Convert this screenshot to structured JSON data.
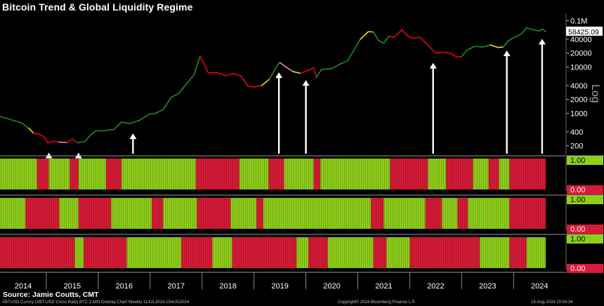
{
  "title": "Bitcoin Trend & Global Liquidity Regime",
  "source": "Source: Jamie Coutts, CMT",
  "footer": {
    "left": "XBTUSD Curncy (XBT-USD Cross Rate) BTC 3 MSI Overlay Chart  Weekly 11JUL2014-15AUG2024",
    "center": "Copyright© 2024 Bloomberg Finance L.P.",
    "right": "15-Aug-2024 20:54:34"
  },
  "colors": {
    "uptrend": "#1f8c1f",
    "downtrend": "#e8001c",
    "neutral_yellow": "#e8e21a",
    "neutral_pink": "#e889c0",
    "regime_on": "#8fcf1a",
    "regime_off": "#d81b37",
    "background": "#000000",
    "last_price_box": "#ffffff"
  },
  "chart_data": [
    {
      "type": "line",
      "yscale": "log",
      "ylabel": "Log",
      "ylim": [
        100,
        100000
      ],
      "y_ticks": [
        "200",
        "400",
        "1000",
        "2000",
        "4000",
        "10000",
        "20000",
        "40000",
        "0.1M"
      ],
      "y_tick_values": [
        200,
        400,
        1000,
        2000,
        4000,
        10000,
        20000,
        40000,
        100000
      ],
      "last_value_label": "58425.09",
      "x_categories": [
        "2014",
        "2015",
        "2016",
        "2017",
        "2018",
        "2019",
        "2020",
        "2021",
        "2022",
        "2023",
        "2024"
      ],
      "series": [
        {
          "points": [
            [
              2014.53,
              620
            ],
            [
              2014.66,
              480
            ],
            [
              2014.76,
              370
            ],
            [
              2014.85,
              360
            ],
            [
              2014.95,
              320
            ],
            [
              2015.03,
              230
            ],
            [
              2015.12,
              250
            ],
            [
              2015.25,
              240
            ],
            [
              2015.4,
              235
            ],
            [
              2015.5,
              280
            ],
            [
              2015.6,
              230
            ],
            [
              2015.75,
              250
            ],
            [
              2015.85,
              340
            ],
            [
              2015.95,
              420
            ],
            [
              2016.1,
              420
            ],
            [
              2016.3,
              450
            ],
            [
              2016.45,
              650
            ],
            [
              2016.6,
              600
            ],
            [
              2016.8,
              710
            ],
            [
              2016.98,
              960
            ],
            [
              2017.1,
              1000
            ],
            [
              2017.25,
              1200
            ],
            [
              2017.4,
              2200
            ],
            [
              2017.55,
              2700
            ],
            [
              2017.7,
              4300
            ],
            [
              2017.85,
              7000
            ],
            [
              2017.96,
              17000
            ],
            [
              2018.05,
              11000
            ],
            [
              2018.12,
              7500
            ],
            [
              2018.3,
              7500
            ],
            [
              2018.45,
              6500
            ],
            [
              2018.6,
              7200
            ],
            [
              2018.75,
              6400
            ],
            [
              2018.88,
              3900
            ],
            [
              2019.0,
              3700
            ],
            [
              2019.15,
              4000
            ],
            [
              2019.3,
              5500
            ],
            [
              2019.45,
              11000
            ],
            [
              2019.5,
              12500
            ],
            [
              2019.6,
              10300
            ],
            [
              2019.75,
              8000
            ],
            [
              2019.9,
              7300
            ],
            [
              2020.05,
              8500
            ],
            [
              2020.15,
              9600
            ],
            [
              2020.2,
              6000
            ],
            [
              2020.3,
              8800
            ],
            [
              2020.5,
              9300
            ],
            [
              2020.65,
              11500
            ],
            [
              2020.8,
              13500
            ],
            [
              2020.95,
              26000
            ],
            [
              2021.05,
              40000
            ],
            [
              2021.2,
              58000
            ],
            [
              2021.3,
              57000
            ],
            [
              2021.4,
              37000
            ],
            [
              2021.5,
              33000
            ],
            [
              2021.6,
              46000
            ],
            [
              2021.7,
              44000
            ],
            [
              2021.85,
              64000
            ],
            [
              2021.95,
              48000
            ],
            [
              2022.05,
              42000
            ],
            [
              2022.2,
              44000
            ],
            [
              2022.35,
              30000
            ],
            [
              2022.5,
              20000
            ],
            [
              2022.65,
              21000
            ],
            [
              2022.8,
              19500
            ],
            [
              2022.9,
              16500
            ],
            [
              2023.0,
              16800
            ],
            [
              2023.1,
              23000
            ],
            [
              2023.25,
              28000
            ],
            [
              2023.4,
              27000
            ],
            [
              2023.55,
              30000
            ],
            [
              2023.7,
              26500
            ],
            [
              2023.8,
              27000
            ],
            [
              2023.9,
              37000
            ],
            [
              2024.0,
              43000
            ],
            [
              2024.15,
              52000
            ],
            [
              2024.25,
              70000
            ],
            [
              2024.4,
              63000
            ],
            [
              2024.5,
              60000
            ],
            [
              2024.55,
              66000
            ],
            [
              2024.62,
              58425
            ]
          ],
          "segment_colors": [
            "green",
            "yellow",
            "red",
            "red",
            "red",
            "red",
            "red",
            "pink",
            "red",
            "red",
            "green",
            "green",
            "green",
            "green",
            "green",
            "green",
            "green",
            "green",
            "green",
            "green",
            "green",
            "green",
            "green",
            "green",
            "green",
            "green",
            "red",
            "red",
            "red",
            "red",
            "red",
            "red",
            "red",
            "red",
            "red",
            "yellow",
            "green",
            "green",
            "pink",
            "pink",
            "yellow",
            "red",
            "red",
            "red",
            "green",
            "green",
            "green",
            "green",
            "green",
            "green",
            "yellow",
            "yellow",
            "green",
            "green",
            "green",
            "red",
            "red",
            "red",
            "red",
            "red",
            "red",
            "red",
            "red",
            "red",
            "red",
            "red",
            "green",
            "green",
            "green",
            "green",
            "yellow",
            "yellow",
            "green",
            "green",
            "green",
            "green",
            "green",
            "green",
            "green",
            "green"
          ],
          "arrow_years": [
            2015.05,
            2015.62,
            2016.67,
            2019.48,
            2020.0,
            2022.45,
            2023.87,
            2024.55
          ]
        }
      ]
    },
    {
      "type": "heatmap",
      "name": "regime-panel-1",
      "ylim": [
        0,
        1
      ],
      "y_ticks": [
        "0.00",
        "1.00"
      ],
      "segments": [
        [
          2014.0,
          2014.82,
          1
        ],
        [
          2014.82,
          2015.05,
          0
        ],
        [
          2015.05,
          2015.45,
          1
        ],
        [
          2015.45,
          2015.62,
          0
        ],
        [
          2015.62,
          2016.15,
          1
        ],
        [
          2016.15,
          2016.45,
          0
        ],
        [
          2016.45,
          2017.88,
          1
        ],
        [
          2017.88,
          2018.72,
          0
        ],
        [
          2018.72,
          2019.28,
          1
        ],
        [
          2019.28,
          2019.58,
          0
        ],
        [
          2019.58,
          2020.15,
          1
        ],
        [
          2020.15,
          2020.28,
          0
        ],
        [
          2020.28,
          2021.62,
          1
        ],
        [
          2021.62,
          2022.35,
          0
        ],
        [
          2022.35,
          2022.7,
          1
        ],
        [
          2022.7,
          2023.22,
          0
        ],
        [
          2023.22,
          2023.52,
          1
        ],
        [
          2023.52,
          2023.72,
          0
        ],
        [
          2023.72,
          2023.92,
          1
        ],
        [
          2023.92,
          2024.62,
          0
        ]
      ]
    },
    {
      "type": "heatmap",
      "name": "regime-panel-2",
      "ylim": [
        0,
        1
      ],
      "y_ticks": [
        "0.00",
        "1.00"
      ],
      "segments": [
        [
          2014.0,
          2014.6,
          1
        ],
        [
          2014.6,
          2015.25,
          0
        ],
        [
          2015.25,
          2015.62,
          1
        ],
        [
          2015.62,
          2016.25,
          0
        ],
        [
          2016.25,
          2017.03,
          1
        ],
        [
          2017.03,
          2017.25,
          0
        ],
        [
          2017.25,
          2017.9,
          1
        ],
        [
          2017.9,
          2018.55,
          0
        ],
        [
          2018.55,
          2019.05,
          1
        ],
        [
          2019.05,
          2019.18,
          0
        ],
        [
          2019.18,
          2021.25,
          1
        ],
        [
          2021.25,
          2021.5,
          0
        ],
        [
          2021.5,
          2022.3,
          1
        ],
        [
          2022.3,
          2022.62,
          0
        ],
        [
          2022.62,
          2022.92,
          1
        ],
        [
          2022.92,
          2023.12,
          0
        ],
        [
          2023.12,
          2023.92,
          1
        ],
        [
          2023.92,
          2024.62,
          0
        ]
      ]
    },
    {
      "type": "heatmap",
      "name": "regime-panel-3",
      "ylim": [
        0,
        1
      ],
      "y_ticks": [
        "0.00",
        "1.00"
      ],
      "segments": [
        [
          2014.0,
          2015.55,
          0
        ],
        [
          2015.55,
          2015.72,
          1
        ],
        [
          2015.72,
          2016.55,
          0
        ],
        [
          2016.55,
          2017.6,
          1
        ],
        [
          2017.6,
          2018.2,
          0
        ],
        [
          2018.2,
          2018.58,
          1
        ],
        [
          2018.58,
          2019.82,
          0
        ],
        [
          2019.82,
          2020.05,
          1
        ],
        [
          2020.05,
          2020.42,
          0
        ],
        [
          2020.42,
          2021.3,
          1
        ],
        [
          2021.3,
          2021.55,
          0
        ],
        [
          2021.55,
          2022.0,
          1
        ],
        [
          2022.0,
          2023.35,
          0
        ],
        [
          2023.35,
          2023.92,
          1
        ],
        [
          2023.92,
          2024.25,
          0
        ],
        [
          2024.25,
          2024.62,
          1
        ]
      ]
    }
  ]
}
